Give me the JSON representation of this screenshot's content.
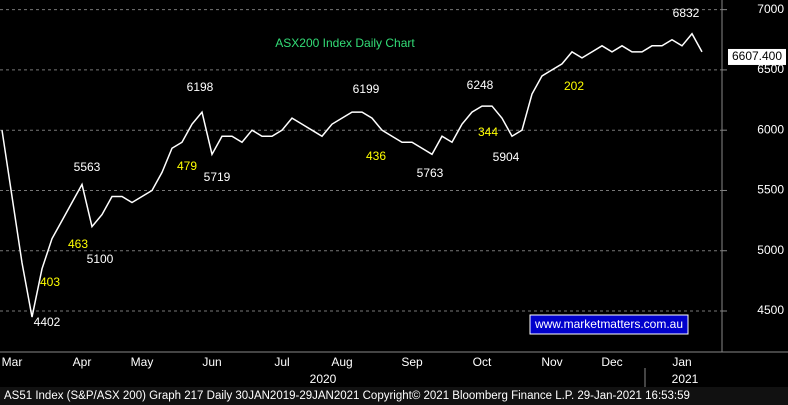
{
  "chart_data": {
    "type": "line",
    "title": "ASX200 Index Daily Chart",
    "categories": [
      null,
      "Mar",
      null,
      null,
      null,
      null,
      null,
      null,
      "Apr",
      null,
      null,
      null,
      null,
      null,
      "May",
      null,
      null,
      null,
      null,
      null,
      null,
      "Jun",
      null,
      null,
      null,
      null,
      null,
      null,
      "Jul",
      null,
      null,
      null,
      null,
      null,
      "Aug",
      null,
      null,
      null,
      null,
      null,
      null,
      "Sep",
      null,
      null,
      null,
      null,
      null,
      null,
      "Oct",
      null,
      null,
      null,
      null,
      null,
      null,
      "Nov",
      null,
      null,
      null,
      null,
      null,
      "Dec",
      null,
      null,
      null,
      null,
      null,
      null,
      "Jan",
      null,
      null
    ],
    "series": [
      {
        "name": "AS51 Index",
        "color": "#ffffff",
        "values": [
          6000,
          5450,
          4900,
          4450,
          4850,
          5100,
          5250,
          5400,
          5550,
          5200,
          5300,
          5450,
          5450,
          5400,
          5450,
          5500,
          5650,
          5850,
          5900,
          6050,
          6150,
          5800,
          5950,
          5950,
          5900,
          6000,
          5950,
          5950,
          6000,
          6100,
          6050,
          6000,
          5950,
          6050,
          6100,
          6150,
          6150,
          6100,
          6000,
          5950,
          5900,
          5900,
          5850,
          5800,
          5950,
          5900,
          6050,
          6150,
          6200,
          6200,
          6100,
          5950,
          6000,
          6300,
          6450,
          6500,
          6550,
          6650,
          6600,
          6650,
          6700,
          6650,
          6700,
          6650,
          6650,
          6700,
          6700,
          6750,
          6700,
          6800,
          6650
        ]
      }
    ],
    "ylim": [
      4160,
      7080
    ],
    "yticks": [
      4500,
      5000,
      5500,
      6000,
      6500,
      7000
    ],
    "grid": true,
    "last_value": {
      "value": 6607.4,
      "label": "6607.400"
    },
    "annotations": [
      "6832",
      "6198",
      "5563",
      "5719",
      "5100",
      "4402",
      "6199",
      "5763",
      "6248",
      "5904",
      "463",
      "403",
      "479",
      "436",
      "344",
      "202"
    ],
    "years": [
      "2020",
      "2021"
    ],
    "source": "www.marketmatters.com.au",
    "footer": "AS51 Index (S&P/ASX 200) Graph 217  Daily 30JAN2019-29JAN2021 Copyright© 2021 Bloomberg Finance L.P. 29-Jan-2021 16:53:59"
  }
}
